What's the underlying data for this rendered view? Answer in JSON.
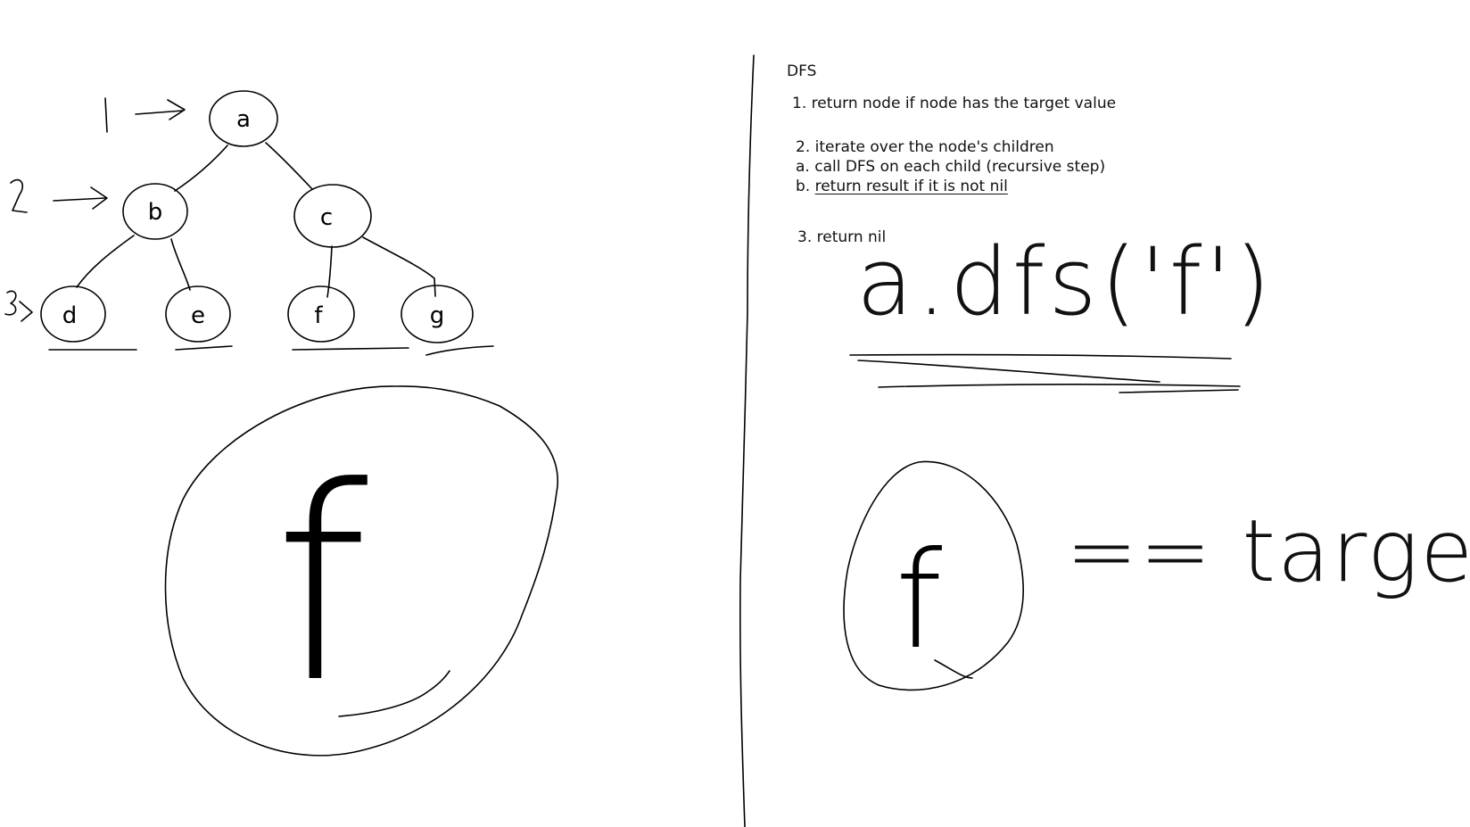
{
  "tree": {
    "nodes": [
      {
        "id": "a",
        "label": "a"
      },
      {
        "id": "b",
        "label": "b"
      },
      {
        "id": "c",
        "label": "c"
      },
      {
        "id": "d",
        "label": "d"
      },
      {
        "id": "e",
        "label": "e"
      },
      {
        "id": "f",
        "label": "f"
      },
      {
        "id": "g",
        "label": "g"
      }
    ],
    "edges": [
      [
        "a",
        "b"
      ],
      [
        "a",
        "c"
      ],
      [
        "b",
        "d"
      ],
      [
        "b",
        "e"
      ],
      [
        "c",
        "f"
      ],
      [
        "c",
        "g"
      ]
    ],
    "level_labels": [
      "1",
      "2",
      "3"
    ],
    "zoomed_node_label": "f"
  },
  "notes": {
    "title": "DFS",
    "step1": "1. return node if node has the target value",
    "step2": "2. iterate over the node's children",
    "step2a": "a. call DFS on each child (recursive step)",
    "step2b_prefix": "b. ",
    "step2b_underlined": "return result if it is not nil",
    "step3": "3. return nil"
  },
  "handwriting": {
    "call": "a.dfs('f')",
    "node_label": "f",
    "comparison": "== target"
  }
}
